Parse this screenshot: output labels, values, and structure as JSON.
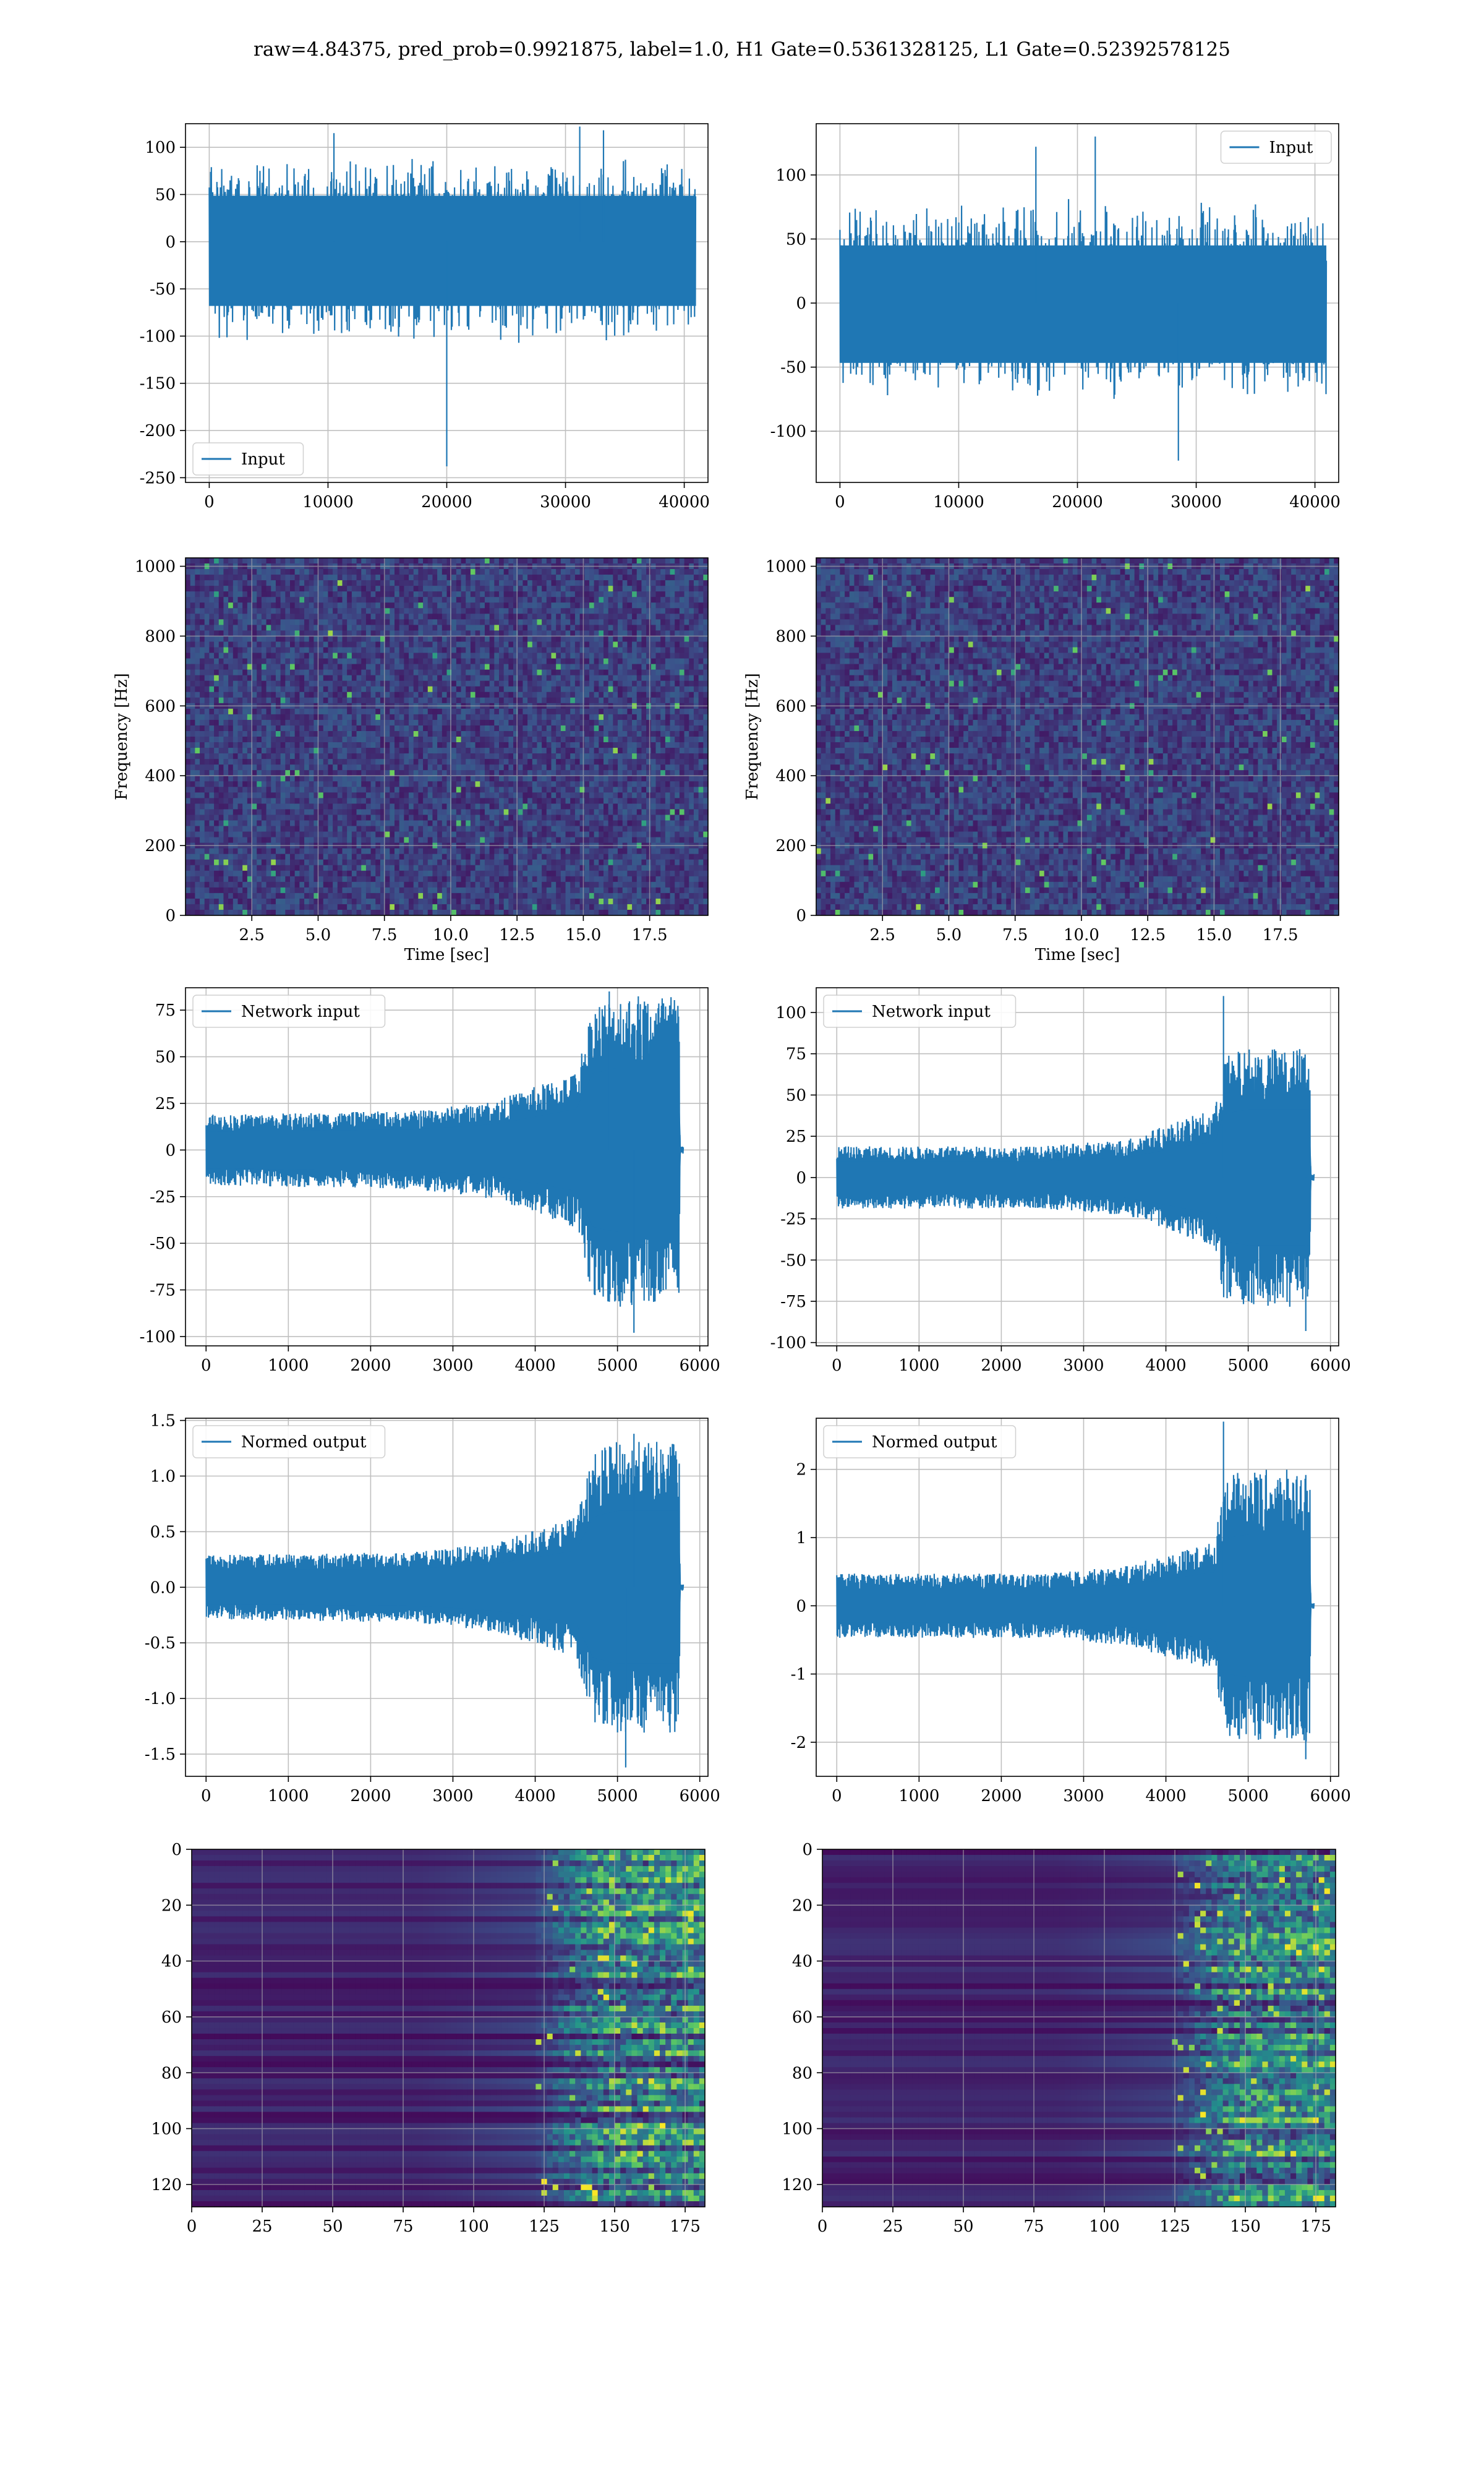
{
  "figure": {
    "title": "raw=4.84375, pred_prob=0.9921875, label=1.0, H1 Gate=0.5361328125, L1 Gate=0.52392578125"
  },
  "colors": {
    "line": "#1f77b4",
    "grid": "#b0b0b0",
    "viridis_low": "#440154",
    "viridis_mid": "#21918c",
    "viridis_high": "#fde725"
  },
  "chart_data": [
    {
      "id": "h1_input",
      "type": "line",
      "xlim": [
        -2000,
        42000
      ],
      "ylim": [
        -255,
        125
      ],
      "xticks": [
        0,
        10000,
        20000,
        30000,
        40000
      ],
      "yticks": [
        -250,
        -200,
        -150,
        -100,
        -50,
        0,
        50,
        100
      ],
      "grid": true,
      "legend": "Input",
      "legend_loc": "lower-left",
      "series": [
        {
          "name": "Input",
          "x_range": [
            0,
            40960
          ],
          "envelope_ymin": [
            -80,
            -80
          ],
          "envelope_ymax": [
            65,
            65
          ],
          "peaks": [
            {
              "x": 20000,
              "y": -238
            },
            {
              "x": 31200,
              "y": 122
            },
            {
              "x": 33200,
              "y": 118
            },
            {
              "x": 10500,
              "y": 115
            }
          ],
          "style": "noise"
        }
      ],
      "xlabel": "",
      "ylabel": ""
    },
    {
      "id": "l1_input",
      "type": "line",
      "xlim": [
        -2000,
        42000
      ],
      "ylim": [
        -140,
        140
      ],
      "xticks": [
        0,
        10000,
        20000,
        30000,
        40000
      ],
      "yticks": [
        -100,
        -50,
        0,
        50,
        100
      ],
      "grid": true,
      "legend": "Input",
      "legend_loc": "upper-right",
      "series": [
        {
          "name": "Input",
          "x_range": [
            0,
            40960
          ],
          "envelope_ymin": [
            -55,
            -55
          ],
          "envelope_ymax": [
            60,
            60
          ],
          "peaks": [
            {
              "x": 21500,
              "y": 130
            },
            {
              "x": 28500,
              "y": -123
            },
            {
              "x": 16500,
              "y": 122
            }
          ],
          "style": "noise"
        }
      ],
      "xlabel": "",
      "ylabel": ""
    },
    {
      "id": "h1_spectrogram",
      "type": "heatmap",
      "xlim": [
        0,
        19.7
      ],
      "ylim": [
        0,
        1024
      ],
      "xticks": [
        2.5,
        5.0,
        7.5,
        10.0,
        12.5,
        15.0,
        17.5
      ],
      "yticks": [
        0,
        200,
        400,
        600,
        800,
        1000
      ],
      "grid": true,
      "xlabel": "Time [sec]",
      "ylabel": "Frequency [Hz]"
    },
    {
      "id": "l1_spectrogram",
      "type": "heatmap",
      "xlim": [
        0,
        19.7
      ],
      "ylim": [
        0,
        1024
      ],
      "xticks": [
        2.5,
        5.0,
        7.5,
        10.0,
        12.5,
        15.0,
        17.5
      ],
      "yticks": [
        0,
        200,
        400,
        600,
        800,
        1000
      ],
      "grid": true,
      "xlabel": "Time [sec]",
      "ylabel": "Frequency [Hz]"
    },
    {
      "id": "h1_network_input",
      "type": "line",
      "xlim": [
        -250,
        6100
      ],
      "ylim": [
        -105,
        87
      ],
      "xticks": [
        0,
        1000,
        2000,
        3000,
        4000,
        5000,
        6000
      ],
      "yticks": [
        -100,
        -75,
        -50,
        -25,
        0,
        25,
        50,
        75
      ],
      "grid": true,
      "legend": "Network input",
      "legend_loc": "upper-left",
      "series": [
        {
          "name": "Network input",
          "x_range": [
            0,
            5800
          ],
          "envelope_key": [
            [
              0,
              18
            ],
            [
              2500,
              20
            ],
            [
              3500,
              25
            ],
            [
              4500,
              40
            ],
            [
              4700,
              75
            ],
            [
              5000,
              80
            ],
            [
              5750,
              80
            ],
            [
              5760,
              2
            ],
            [
              5800,
              2
            ]
          ],
          "peaks": [
            {
              "x": 4900,
              "y": 85
            },
            {
              "x": 5200,
              "y": -98
            }
          ],
          "style": "chirp"
        }
      ],
      "xlabel": "",
      "ylabel": ""
    },
    {
      "id": "l1_network_input",
      "type": "line",
      "xlim": [
        -250,
        6100
      ],
      "ylim": [
        -102,
        115
      ],
      "xticks": [
        0,
        1000,
        2000,
        3000,
        4000,
        5000,
        6000
      ],
      "yticks": [
        -100,
        -75,
        -50,
        -25,
        0,
        25,
        50,
        75,
        100
      ],
      "grid": true,
      "legend": "Network input",
      "legend_loc": "upper-left",
      "series": [
        {
          "name": "Network input",
          "x_range": [
            0,
            5800
          ],
          "envelope_key": [
            [
              0,
              18
            ],
            [
              2500,
              18
            ],
            [
              3500,
              22
            ],
            [
              4600,
              40
            ],
            [
              4700,
              70
            ],
            [
              5000,
              75
            ],
            [
              5750,
              75
            ],
            [
              5760,
              2
            ],
            [
              5800,
              2
            ]
          ],
          "peaks": [
            {
              "x": 4700,
              "y": 110
            },
            {
              "x": 5700,
              "y": -93
            }
          ],
          "style": "chirp"
        }
      ],
      "xlabel": "",
      "ylabel": ""
    },
    {
      "id": "h1_normed_output",
      "type": "line",
      "xlim": [
        -250,
        6100
      ],
      "ylim": [
        -1.7,
        1.52
      ],
      "xticks": [
        0,
        1000,
        2000,
        3000,
        4000,
        5000,
        6000
      ],
      "yticks": [
        -1.5,
        -1.0,
        -0.5,
        0.0,
        0.5,
        1.0,
        1.5
      ],
      "grid": true,
      "legend": "Normed output",
      "legend_loc": "upper-left",
      "series": [
        {
          "name": "Normed output",
          "x_range": [
            0,
            5800
          ],
          "envelope_key": [
            [
              0,
              0.28
            ],
            [
              2500,
              0.3
            ],
            [
              3500,
              0.38
            ],
            [
              4500,
              0.6
            ],
            [
              4700,
              1.15
            ],
            [
              5000,
              1.25
            ],
            [
              5750,
              1.25
            ],
            [
              5760,
              0.03
            ],
            [
              5800,
              0.03
            ]
          ],
          "peaks": [
            {
              "x": 5200,
              "y": 1.38
            },
            {
              "x": 5100,
              "y": -1.62
            }
          ],
          "style": "chirp"
        }
      ],
      "xlabel": "",
      "ylabel": ""
    },
    {
      "id": "l1_normed_output",
      "type": "line",
      "xlim": [
        -250,
        6100
      ],
      "ylim": [
        -2.5,
        2.75
      ],
      "xticks": [
        0,
        1000,
        2000,
        3000,
        4000,
        5000,
        6000
      ],
      "yticks": [
        -2,
        -1,
        0,
        1,
        2
      ],
      "grid": true,
      "legend": "Normed output",
      "legend_loc": "upper-left",
      "series": [
        {
          "name": "Normed output",
          "x_range": [
            0,
            5800
          ],
          "envelope_key": [
            [
              0,
              0.45
            ],
            [
              2500,
              0.45
            ],
            [
              3500,
              0.55
            ],
            [
              4600,
              0.9
            ],
            [
              4700,
              1.8
            ],
            [
              5000,
              1.9
            ],
            [
              5750,
              1.9
            ],
            [
              5760,
              0.04
            ],
            [
              5800,
              0.04
            ]
          ],
          "peaks": [
            {
              "x": 4700,
              "y": 2.7
            },
            {
              "x": 5700,
              "y": -2.25
            }
          ],
          "style": "chirp"
        }
      ],
      "xlabel": "",
      "ylabel": ""
    },
    {
      "id": "h1_gate_map",
      "type": "heatmap",
      "xlim": [
        0,
        182
      ],
      "ylim": [
        128,
        0
      ],
      "xticks": [
        0,
        25,
        50,
        75,
        100,
        125,
        150,
        175
      ],
      "yticks": [
        0,
        20,
        40,
        60,
        80,
        100,
        120
      ],
      "grid": true,
      "activity_start_col": 120,
      "xlabel": "",
      "ylabel": ""
    },
    {
      "id": "l1_gate_map",
      "type": "heatmap",
      "xlim": [
        0,
        182
      ],
      "ylim": [
        128,
        0
      ],
      "xticks": [
        0,
        25,
        50,
        75,
        100,
        125,
        150,
        175
      ],
      "yticks": [
        0,
        20,
        40,
        60,
        80,
        100,
        120
      ],
      "grid": true,
      "activity_start_col": 122,
      "xlabel": "",
      "ylabel": ""
    }
  ]
}
